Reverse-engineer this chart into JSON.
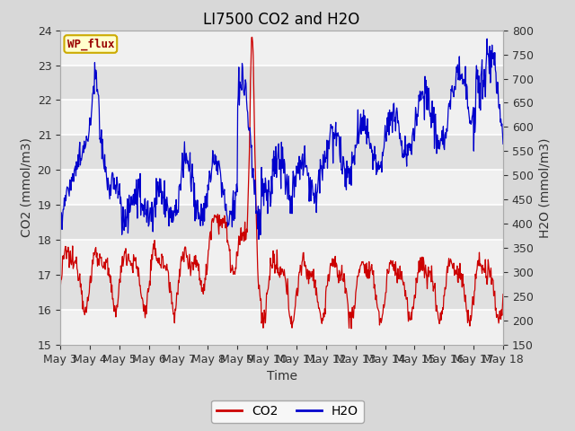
{
  "title": "LI7500 CO2 and H2O",
  "xlabel": "Time",
  "ylabel_left": "CO2 (mmol/m3)",
  "ylabel_right": "H2O (mmol/m3)",
  "ylim_left": [
    15.0,
    24.0
  ],
  "ylim_right": [
    150,
    800
  ],
  "yticks_left": [
    15.0,
    16.0,
    17.0,
    18.0,
    19.0,
    20.0,
    21.0,
    22.0,
    23.0,
    24.0
  ],
  "yticks_right": [
    150,
    200,
    250,
    300,
    350,
    400,
    450,
    500,
    550,
    600,
    650,
    700,
    750,
    800
  ],
  "xtick_labels": [
    "May 3",
    "May 4",
    "May 5",
    "May 6",
    "May 7",
    "May 8",
    "May 9",
    "May 10",
    "May 11",
    "May 12",
    "May 13",
    "May 14",
    "May 15",
    "May 16",
    "May 17",
    "May 18"
  ],
  "co2_color": "#cc0000",
  "h2o_color": "#0000cc",
  "background_color": "#d8d8d8",
  "plot_bg_light": "#f0f0f0",
  "plot_bg_dark": "#e0e0e0",
  "annotation_text": "WP_flux",
  "annotation_color": "#990000",
  "annotation_bg": "#ffffcc",
  "annotation_border": "#ccaa00",
  "grid_color": "#ffffff",
  "legend_co2": "CO2",
  "legend_h2o": "H2O",
  "title_fontsize": 12,
  "axis_fontsize": 10,
  "tick_fontsize": 9,
  "linewidth": 0.9
}
